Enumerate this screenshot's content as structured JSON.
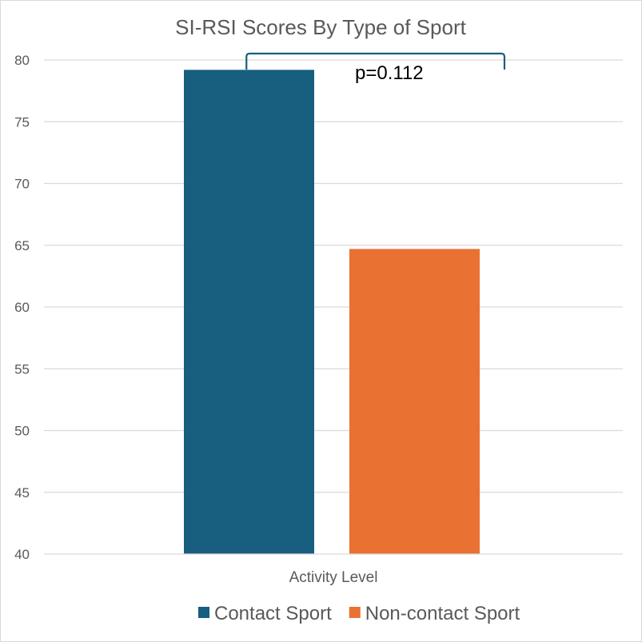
{
  "chart_data": {
    "type": "bar",
    "title": "SI-RSI Scores By Type of Sport",
    "xlabel": "",
    "ylabel": "",
    "categories": [
      "Activity Level"
    ],
    "series": [
      {
        "name": "Contact Sport",
        "values": [
          79.2
        ],
        "color": "#175e7f"
      },
      {
        "name": "Non-contact Sport",
        "values": [
          64.7
        ],
        "color": "#e97132"
      }
    ],
    "ylim": [
      40,
      80
    ],
    "yticks": [
      40,
      45,
      50,
      55,
      60,
      65,
      70,
      75,
      80
    ],
    "grid": true,
    "legend_position": "bottom",
    "annotation": {
      "text": "p=0.112",
      "bracket_color": "#175e7f"
    }
  }
}
